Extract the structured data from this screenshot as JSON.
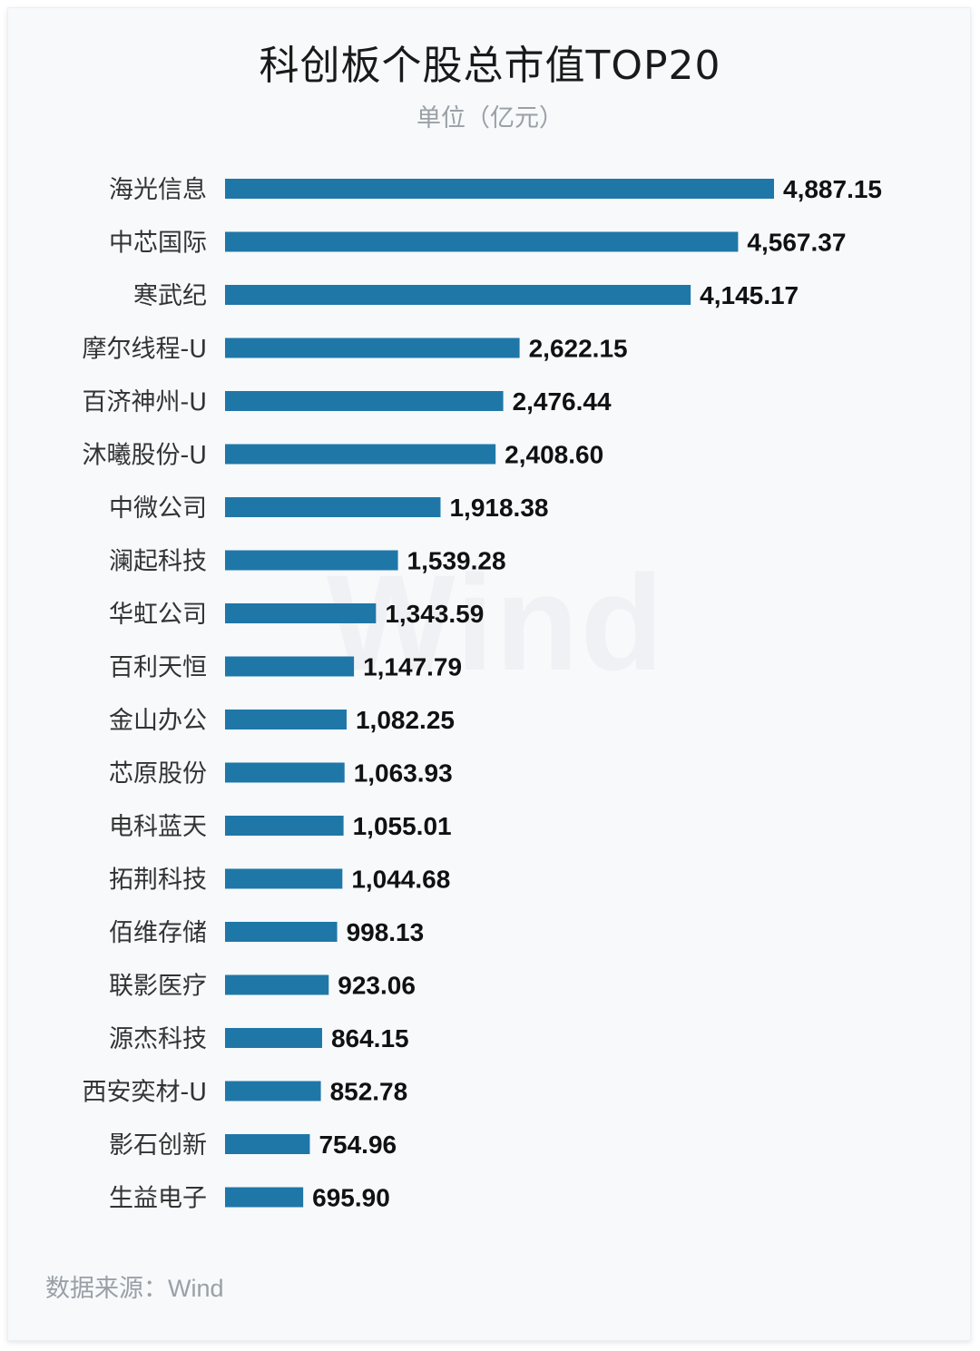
{
  "title": "科创板个股总市值TOP20",
  "subtitle": "单位（亿元）",
  "source": {
    "label": "数据来源：",
    "name": "Wind"
  },
  "watermark": "Wind",
  "colors": {
    "bar": "#1f77a8"
  },
  "chart_data": {
    "type": "bar",
    "orientation": "horizontal",
    "title": "科创板个股总市值TOP20",
    "subtitle": "单位（亿元）",
    "categories": [
      "海光信息",
      "中芯国际",
      "寒武纪",
      "摩尔线程-U",
      "百济神州-U",
      "沐曦股份-U",
      "中微公司",
      "澜起科技",
      "华虹公司",
      "百利天恒",
      "金山办公",
      "芯原股份",
      "电科蓝天",
      "拓荆科技",
      "佰维存储",
      "联影医疗",
      "源杰科技",
      "西安奕材-U",
      "影石创新",
      "生益电子"
    ],
    "values": [
      4887.15,
      4567.37,
      4145.17,
      2622.15,
      2476.44,
      2408.6,
      1918.38,
      1539.28,
      1343.59,
      1147.79,
      1082.25,
      1063.93,
      1055.01,
      1044.68,
      998.13,
      923.06,
      864.15,
      852.78,
      754.96,
      695.9
    ],
    "value_labels": [
      "4,887.15",
      "4,567.37",
      "4,145.17",
      "2,622.15",
      "2,476.44",
      "2,408.60",
      "1,918.38",
      "1,539.28",
      "1,343.59",
      "1,147.79",
      "1,082.25",
      "1,063.93",
      "1,055.01",
      "1,044.68",
      "998.13",
      "923.06",
      "864.15",
      "852.78",
      "754.96",
      "695.90"
    ],
    "xlim": [
      0,
      4887.15
    ],
    "grid": false,
    "legend": "none",
    "data_labels": "end"
  }
}
